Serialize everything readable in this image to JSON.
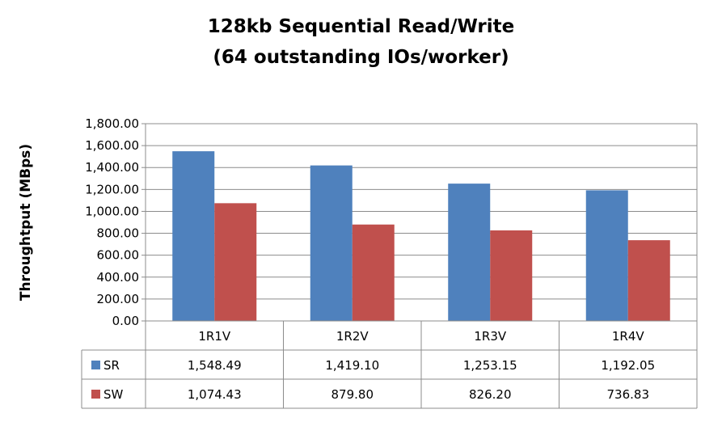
{
  "chart_data": {
    "type": "bar",
    "title_line1": "128kb Sequential Read/Write",
    "title_line2": "(64 outstanding IOs/worker)",
    "xlabel": "",
    "ylabel": "Throughtput (MBps)",
    "ylim": [
      0,
      1800
    ],
    "ytick_labels": [
      "0.00",
      "200.00",
      "400.00",
      "600.00",
      "800.00",
      "1,000.00",
      "1,200.00",
      "1,400.00",
      "1,600.00",
      "1,800.00"
    ],
    "grid": true,
    "legend": "data-table",
    "categories": [
      "1R1V",
      "1R2V",
      "1R3V",
      "1R4V"
    ],
    "series": [
      {
        "name": "SR",
        "color": "#4F81BD",
        "values": [
          1548.49,
          1419.1,
          1253.15,
          1192.05
        ],
        "labels": [
          "1,548.49",
          "1,419.10",
          "1,253.15",
          "1,192.05"
        ]
      },
      {
        "name": "SW",
        "color": "#C0504D",
        "values": [
          1074.43,
          879.8,
          826.2,
          736.83
        ],
        "labels": [
          "1,074.43",
          "879.80",
          "826.20",
          "736.83"
        ]
      }
    ]
  }
}
